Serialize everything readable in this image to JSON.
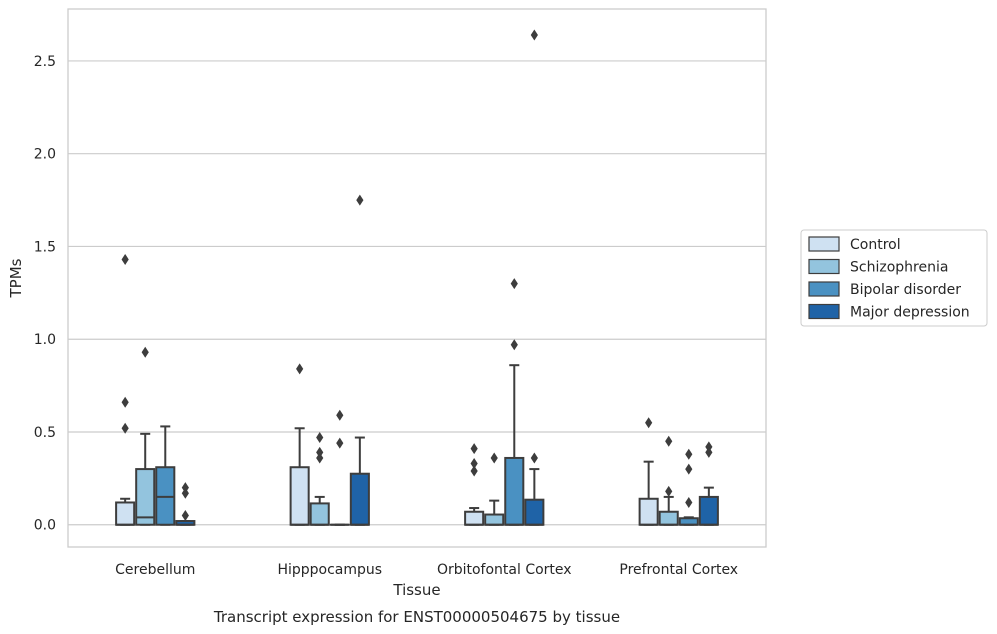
{
  "chart_data": {
    "type": "box",
    "caption": "Transcript expression for ENST00000504675 by tissue",
    "xlabel": "Tissue",
    "ylabel": "TPMs",
    "ylim": [
      -0.12,
      2.78
    ],
    "yticks": [
      0.0,
      0.5,
      1.0,
      1.5,
      2.0,
      2.5
    ],
    "ytick_labels": [
      "0.0",
      "0.5",
      "1.0",
      "1.5",
      "2.0",
      "2.5"
    ],
    "grid": true,
    "legend_position": "right",
    "categories": [
      "Cerebellum",
      "Hipppocampus",
      "Orbitofontal Cortex",
      "Prefrontal Cortex"
    ],
    "series": [
      {
        "name": "Control",
        "color": "#cfe1f2",
        "boxes": [
          {
            "q1": 0.0,
            "median": 0.0,
            "q3": 0.12,
            "whisker_low": 0.0,
            "whisker_high": 0.14,
            "outliers": [
              1.43,
              0.66,
              0.52
            ]
          },
          {
            "q1": 0.0,
            "median": 0.0,
            "q3": 0.31,
            "whisker_low": 0.0,
            "whisker_high": 0.52,
            "outliers": [
              0.84
            ]
          },
          {
            "q1": 0.0,
            "median": 0.0,
            "q3": 0.07,
            "whisker_low": 0.0,
            "whisker_high": 0.09,
            "outliers": [
              0.41,
              0.33,
              0.29
            ]
          },
          {
            "q1": 0.0,
            "median": 0.0,
            "q3": 0.14,
            "whisker_low": 0.0,
            "whisker_high": 0.34,
            "outliers": [
              0.55
            ]
          }
        ]
      },
      {
        "name": "Schizophrenia",
        "color": "#93c4de",
        "boxes": [
          {
            "q1": 0.0,
            "median": 0.04,
            "q3": 0.3,
            "whisker_low": 0.0,
            "whisker_high": 0.49,
            "outliers": [
              0.93
            ]
          },
          {
            "q1": 0.0,
            "median": 0.0,
            "q3": 0.115,
            "whisker_low": 0.0,
            "whisker_high": 0.15,
            "outliers": [
              0.47,
              0.39,
              0.36
            ]
          },
          {
            "q1": 0.0,
            "median": 0.0,
            "q3": 0.055,
            "whisker_low": 0.0,
            "whisker_high": 0.13,
            "outliers": [
              0.36
            ]
          },
          {
            "q1": 0.0,
            "median": 0.0,
            "q3": 0.07,
            "whisker_low": 0.0,
            "whisker_high": 0.15,
            "outliers": [
              0.45,
              0.18
            ]
          }
        ]
      },
      {
        "name": "Bipolar disorder",
        "color": "#4a91c2",
        "boxes": [
          {
            "q1": 0.0,
            "median": 0.15,
            "q3": 0.31,
            "whisker_low": 0.0,
            "whisker_high": 0.53,
            "outliers": []
          },
          {
            "q1": 0.0,
            "median": 0.0,
            "q3": 0.0,
            "whisker_low": 0.0,
            "whisker_high": 0.0,
            "outliers": [
              0.59,
              0.44
            ]
          },
          {
            "q1": 0.0,
            "median": 0.0,
            "q3": 0.36,
            "whisker_low": 0.0,
            "whisker_high": 0.86,
            "outliers": [
              1.3,
              0.97
            ]
          },
          {
            "q1": 0.0,
            "median": 0.0,
            "q3": 0.035,
            "whisker_low": 0.0,
            "whisker_high": 0.04,
            "outliers": [
              0.38,
              0.3,
              0.12
            ]
          }
        ]
      },
      {
        "name": "Major depression",
        "color": "#1f63a7",
        "boxes": [
          {
            "q1": 0.0,
            "median": 0.0,
            "q3": 0.02,
            "whisker_low": 0.0,
            "whisker_high": 0.02,
            "outliers": [
              0.2,
              0.17,
              0.05
            ]
          },
          {
            "q1": 0.0,
            "median": 0.0,
            "q3": 0.275,
            "whisker_low": 0.0,
            "whisker_high": 0.47,
            "outliers": [
              1.75
            ]
          },
          {
            "q1": 0.0,
            "median": 0.0,
            "q3": 0.135,
            "whisker_low": 0.0,
            "whisker_high": 0.3,
            "outliers": [
              2.64,
              0.36
            ]
          },
          {
            "q1": 0.0,
            "median": 0.0,
            "q3": 0.15,
            "whisker_low": 0.0,
            "whisker_high": 0.2,
            "outliers": [
              0.42,
              0.39
            ]
          }
        ]
      }
    ]
  }
}
